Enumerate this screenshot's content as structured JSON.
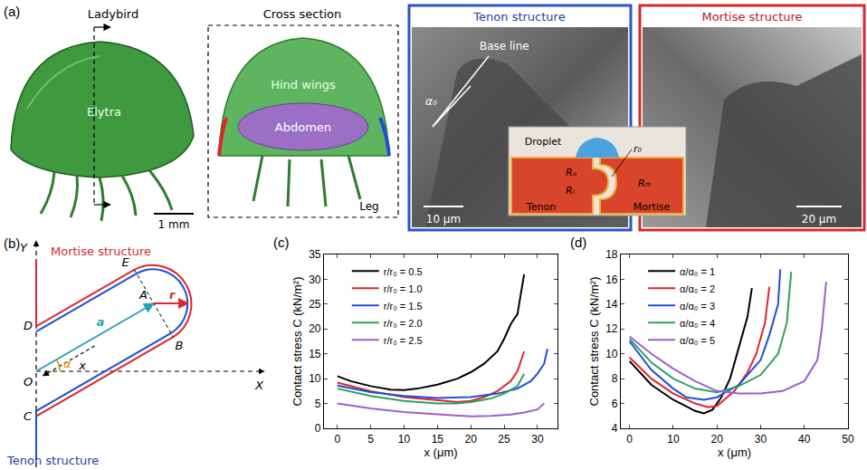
{
  "figure": {
    "panel_a": {
      "label": "(a)",
      "ladybird_title": "Ladybird",
      "cross_section_title": "Cross section",
      "elytra": "Elytra",
      "hind_wings": "Hind wings",
      "abdomen": "Abdomen",
      "leg": "Leg",
      "scale_ladybird": "1 mm",
      "tenon_title": "Tenon structure",
      "base_line": "Base line",
      "alpha0": "α₀",
      "scale_tenon": "10 μm",
      "mortise_title": "Mortise structure",
      "scale_mortise": "20 μm",
      "inset": {
        "droplet": "Droplet",
        "r0": "r₀",
        "Ru": "Rᵤ",
        "Rl": "Rₗ",
        "Rm": "Rₘ",
        "tenon": "Tenon",
        "mortise": "Mortise"
      }
    },
    "panel_b": {
      "label": "(b)",
      "mortise": "Mortise structure",
      "tenon": "Tenon structure",
      "axis_x": "X",
      "axis_y": "Y",
      "points": [
        "O",
        "C",
        "D",
        "E",
        "A",
        "B"
      ],
      "a": "a",
      "r": "r",
      "x": "x",
      "alpha": "α"
    }
  },
  "chart_data": [
    {
      "type": "line",
      "label": "(c)",
      "x_label": "x (μm)",
      "y_label": "Contact stress C (kN/m²)",
      "xlim": [
        -2,
        33
      ],
      "xticks": [
        0,
        5,
        10,
        15,
        20,
        25,
        30
      ],
      "ylim": [
        0,
        35
      ],
      "yticks": [
        0,
        5,
        10,
        15,
        20,
        25,
        30,
        35
      ],
      "grid": false,
      "legend": "top left",
      "series": [
        {
          "name": "r/r₀ = 0.5",
          "color": "#000000",
          "x": [
            0,
            2,
            5,
            8,
            10,
            12,
            15,
            18,
            20,
            22,
            24,
            25,
            26,
            27,
            28
          ],
          "values": [
            10.5,
            9.5,
            8.5,
            7.8,
            7.7,
            8,
            8.8,
            10,
            11.3,
            13,
            15.5,
            18,
            21,
            23,
            31
          ]
        },
        {
          "name": "r/r₀ = 1.0",
          "color": "#e3242b",
          "x": [
            0,
            5,
            10,
            15,
            18,
            20,
            22,
            24,
            26,
            27,
            28
          ],
          "values": [
            9.2,
            7.5,
            6.3,
            5.6,
            5.3,
            5.5,
            6.3,
            7.5,
            9.5,
            11.5,
            15.5
          ]
        },
        {
          "name": "r/r₀ = 1.5",
          "color": "#1f4ed8",
          "x": [
            0,
            5,
            10,
            15,
            20,
            24,
            27,
            29,
            30,
            31,
            31.5
          ],
          "values": [
            8.6,
            7.3,
            6.5,
            6.1,
            6.3,
            7,
            8,
            9.5,
            11,
            13,
            16
          ]
        },
        {
          "name": "r/r₀ = 2.0",
          "color": "#2ca25f",
          "x": [
            0,
            5,
            10,
            15,
            18,
            20,
            23,
            25,
            27,
            28
          ],
          "values": [
            8,
            6.5,
            5.5,
            5,
            5,
            5.3,
            6,
            7,
            8.5,
            11
          ]
        },
        {
          "name": "r/r₀ = 2.5",
          "color": "#9b5fd0",
          "x": [
            0,
            5,
            10,
            15,
            20,
            23,
            26,
            28,
            30,
            31
          ],
          "values": [
            5,
            4,
            3.3,
            2.8,
            2.4,
            2.5,
            2.8,
            3.2,
            3.8,
            5
          ]
        }
      ]
    },
    {
      "type": "line",
      "label": "(d)",
      "x_label": "x (μm)",
      "y_label": "Contact stress C (kN/m²)",
      "xlim": [
        -2,
        50
      ],
      "xticks": [
        0,
        10,
        20,
        30,
        40,
        50
      ],
      "ylim": [
        4,
        18
      ],
      "yticks": [
        4,
        6,
        8,
        10,
        12,
        14,
        16,
        18
      ],
      "grid": false,
      "legend": "top left",
      "series": [
        {
          "name": "α/α₀ = 1",
          "color": "#000000",
          "x": [
            0,
            5,
            10,
            15,
            17,
            19,
            21,
            23,
            25,
            27,
            28
          ],
          "values": [
            9.4,
            7.5,
            6.3,
            5.4,
            5.2,
            5.5,
            6.5,
            8,
            10.5,
            13,
            15.3
          ]
        },
        {
          "name": "α/α₀ = 2",
          "color": "#e3242b",
          "x": [
            0,
            5,
            10,
            15,
            18,
            20,
            24,
            27,
            29,
            31,
            32
          ],
          "values": [
            9.7,
            8,
            6.8,
            6,
            5.7,
            5.8,
            7,
            8.5,
            10,
            12.5,
            15.4
          ]
        },
        {
          "name": "α/α₀ = 3",
          "color": "#1f4ed8",
          "x": [
            0,
            5,
            10,
            13,
            17,
            20,
            25,
            30,
            32,
            34,
            34.5
          ],
          "values": [
            11,
            8.7,
            7.2,
            6.5,
            6.3,
            6.5,
            7.5,
            9.5,
            11.5,
            14,
            16.8
          ]
        },
        {
          "name": "α/α₀ = 4",
          "color": "#2ca25f",
          "x": [
            0,
            5,
            10,
            15,
            20,
            25,
            30,
            34,
            36,
            37
          ],
          "values": [
            11.2,
            9.3,
            8,
            7.2,
            6.9,
            7.4,
            8.3,
            10,
            12.5,
            16.6
          ]
        },
        {
          "name": "α/α₀ = 5",
          "color": "#9b5fd0",
          "x": [
            0,
            5,
            10,
            15,
            20,
            25,
            30,
            35,
            40,
            43,
            44,
            45
          ],
          "values": [
            11.4,
            10,
            8.8,
            7.8,
            7,
            6.8,
            6.8,
            7,
            7.8,
            9.5,
            12,
            15.8
          ]
        }
      ]
    }
  ]
}
